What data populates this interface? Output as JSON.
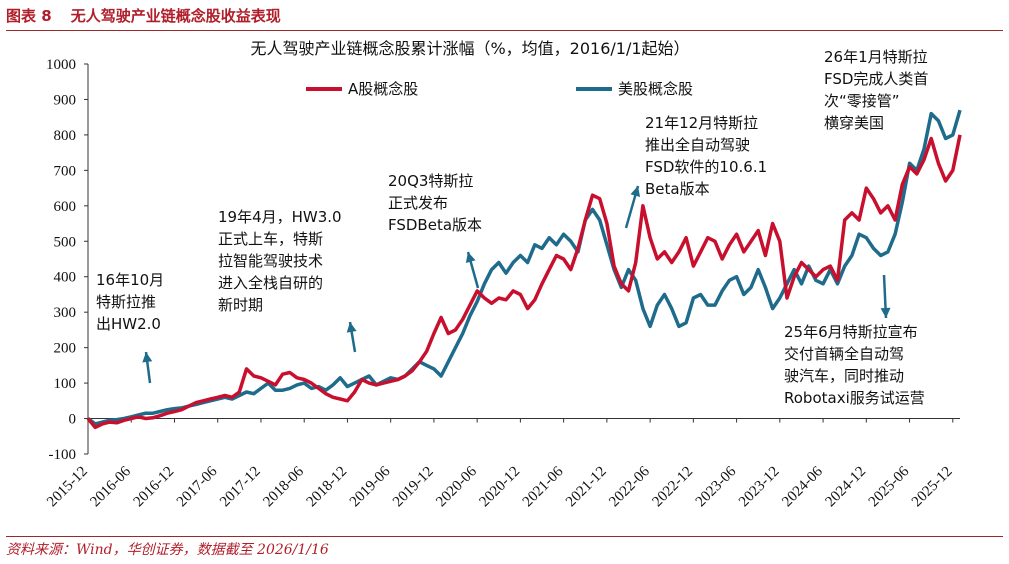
{
  "header": {
    "figure_label": "图表 8",
    "figure_title": "无人驾驶产业链概念股收益表现"
  },
  "footer": {
    "source": "资料来源：Wind，华创证券，数据截至 2026/1/16"
  },
  "colors": {
    "series_a": "#c8102e",
    "series_us": "#1f6b8c",
    "accent": "#b01e2a",
    "arrow": "#1f6b8c"
  },
  "chart_data": {
    "type": "line",
    "title": "无人驾驶产业链概念股累计涨幅（%，均值，2016/1/1起始）",
    "xlabel": "",
    "ylabel": "",
    "ylim": [
      -100,
      1000
    ],
    "yticks": [
      -100,
      0,
      100,
      200,
      300,
      400,
      500,
      600,
      700,
      800,
      900,
      1000
    ],
    "xlim": [
      "2015-12",
      "2026-01"
    ],
    "xticks": [
      "2015-12",
      "2016-06",
      "2016-12",
      "2017-06",
      "2017-12",
      "2018-06",
      "2018-12",
      "2019-06",
      "2019-12",
      "2020-06",
      "2020-12",
      "2021-06",
      "2021-12",
      "2022-06",
      "2022-12",
      "2023-06",
      "2023-12",
      "2024-06",
      "2024-12",
      "2025-06",
      "2025-12"
    ],
    "grid": false,
    "legend_position": "top",
    "series": [
      {
        "name": "A股概念股",
        "points": [
          [
            "2015-12",
            0
          ],
          [
            "2016-01",
            -25
          ],
          [
            "2016-02",
            -15
          ],
          [
            "2016-03",
            -10
          ],
          [
            "2016-04",
            -12
          ],
          [
            "2016-05",
            -5
          ],
          [
            "2016-06",
            0
          ],
          [
            "2016-07",
            5
          ],
          [
            "2016-08",
            0
          ],
          [
            "2016-09",
            2
          ],
          [
            "2016-10",
            8
          ],
          [
            "2016-11",
            15
          ],
          [
            "2016-12",
            20
          ],
          [
            "2017-01",
            25
          ],
          [
            "2017-02",
            35
          ],
          [
            "2017-03",
            45
          ],
          [
            "2017-04",
            50
          ],
          [
            "2017-05",
            55
          ],
          [
            "2017-06",
            60
          ],
          [
            "2017-07",
            65
          ],
          [
            "2017-08",
            60
          ],
          [
            "2017-09",
            75
          ],
          [
            "2017-10",
            140
          ],
          [
            "2017-11",
            120
          ],
          [
            "2017-12",
            115
          ],
          [
            "2018-01",
            105
          ],
          [
            "2018-02",
            95
          ],
          [
            "2018-03",
            125
          ],
          [
            "2018-04",
            130
          ],
          [
            "2018-05",
            115
          ],
          [
            "2018-06",
            110
          ],
          [
            "2018-07",
            100
          ],
          [
            "2018-08",
            85
          ],
          [
            "2018-09",
            70
          ],
          [
            "2018-10",
            60
          ],
          [
            "2018-11",
            55
          ],
          [
            "2018-12",
            50
          ],
          [
            "2019-01",
            75
          ],
          [
            "2019-02",
            110
          ],
          [
            "2019-03",
            100
          ],
          [
            "2019-04",
            95
          ],
          [
            "2019-05",
            100
          ],
          [
            "2019-06",
            105
          ],
          [
            "2019-07",
            110
          ],
          [
            "2019-08",
            120
          ],
          [
            "2019-09",
            135
          ],
          [
            "2019-10",
            160
          ],
          [
            "2019-11",
            190
          ],
          [
            "2019-12",
            240
          ],
          [
            "2020-01",
            285
          ],
          [
            "2020-02",
            240
          ],
          [
            "2020-03",
            250
          ],
          [
            "2020-04",
            280
          ],
          [
            "2020-05",
            320
          ],
          [
            "2020-06",
            360
          ],
          [
            "2020-07",
            340
          ],
          [
            "2020-08",
            325
          ],
          [
            "2020-09",
            340
          ],
          [
            "2020-10",
            335
          ],
          [
            "2020-11",
            360
          ],
          [
            "2020-12",
            350
          ],
          [
            "2021-01",
            310
          ],
          [
            "2021-02",
            335
          ],
          [
            "2021-03",
            380
          ],
          [
            "2021-04",
            420
          ],
          [
            "2021-05",
            460
          ],
          [
            "2021-06",
            450
          ],
          [
            "2021-07",
            420
          ],
          [
            "2021-08",
            480
          ],
          [
            "2021-09",
            560
          ],
          [
            "2021-10",
            630
          ],
          [
            "2021-11",
            620
          ],
          [
            "2021-12",
            550
          ],
          [
            "2022-01",
            430
          ],
          [
            "2022-02",
            380
          ],
          [
            "2022-03",
            360
          ],
          [
            "2022-04",
            440
          ],
          [
            "2022-05",
            600
          ],
          [
            "2022-06",
            510
          ],
          [
            "2022-07",
            450
          ],
          [
            "2022-08",
            470
          ],
          [
            "2022-09",
            440
          ],
          [
            "2022-10",
            470
          ],
          [
            "2022-11",
            510
          ],
          [
            "2022-12",
            430
          ],
          [
            "2023-01",
            470
          ],
          [
            "2023-02",
            510
          ],
          [
            "2023-03",
            500
          ],
          [
            "2023-04",
            450
          ],
          [
            "2023-05",
            490
          ],
          [
            "2023-06",
            520
          ],
          [
            "2023-07",
            470
          ],
          [
            "2023-08",
            500
          ],
          [
            "2023-09",
            530
          ],
          [
            "2023-10",
            460
          ],
          [
            "2023-11",
            550
          ],
          [
            "2023-12",
            500
          ],
          [
            "2024-01",
            340
          ],
          [
            "2024-02",
            400
          ],
          [
            "2024-03",
            440
          ],
          [
            "2024-04",
            420
          ],
          [
            "2024-05",
            400
          ],
          [
            "2024-06",
            420
          ],
          [
            "2024-07",
            430
          ],
          [
            "2024-08",
            390
          ],
          [
            "2024-09",
            560
          ],
          [
            "2024-10",
            580
          ],
          [
            "2024-11",
            560
          ],
          [
            "2024-12",
            650
          ],
          [
            "2025-01",
            620
          ],
          [
            "2025-02",
            580
          ],
          [
            "2025-03",
            600
          ],
          [
            "2025-04",
            560
          ],
          [
            "2025-05",
            660
          ],
          [
            "2025-06",
            710
          ],
          [
            "2025-07",
            690
          ],
          [
            "2025-08",
            730
          ],
          [
            "2025-09",
            790
          ],
          [
            "2025-10",
            720
          ],
          [
            "2025-11",
            670
          ],
          [
            "2025-12",
            700
          ],
          [
            "2026-01",
            800
          ]
        ]
      },
      {
        "name": "美股概念股",
        "points": [
          [
            "2015-12",
            0
          ],
          [
            "2016-01",
            -15
          ],
          [
            "2016-02",
            -10
          ],
          [
            "2016-03",
            -5
          ],
          [
            "2016-04",
            -3
          ],
          [
            "2016-05",
            0
          ],
          [
            "2016-06",
            5
          ],
          [
            "2016-07",
            10
          ],
          [
            "2016-08",
            15
          ],
          [
            "2016-09",
            15
          ],
          [
            "2016-10",
            20
          ],
          [
            "2016-11",
            25
          ],
          [
            "2016-12",
            28
          ],
          [
            "2017-01",
            30
          ],
          [
            "2017-02",
            35
          ],
          [
            "2017-03",
            40
          ],
          [
            "2017-04",
            45
          ],
          [
            "2017-05",
            50
          ],
          [
            "2017-06",
            55
          ],
          [
            "2017-07",
            60
          ],
          [
            "2017-08",
            55
          ],
          [
            "2017-09",
            65
          ],
          [
            "2017-10",
            75
          ],
          [
            "2017-11",
            70
          ],
          [
            "2017-12",
            85
          ],
          [
            "2018-01",
            100
          ],
          [
            "2018-02",
            80
          ],
          [
            "2018-03",
            80
          ],
          [
            "2018-04",
            85
          ],
          [
            "2018-05",
            95
          ],
          [
            "2018-06",
            100
          ],
          [
            "2018-07",
            85
          ],
          [
            "2018-08",
            90
          ],
          [
            "2018-09",
            80
          ],
          [
            "2018-10",
            95
          ],
          [
            "2018-11",
            115
          ],
          [
            "2018-12",
            90
          ],
          [
            "2019-01",
            100
          ],
          [
            "2019-02",
            110
          ],
          [
            "2019-03",
            120
          ],
          [
            "2019-04",
            95
          ],
          [
            "2019-05",
            105
          ],
          [
            "2019-06",
            115
          ],
          [
            "2019-07",
            110
          ],
          [
            "2019-08",
            120
          ],
          [
            "2019-09",
            140
          ],
          [
            "2019-10",
            160
          ],
          [
            "2019-11",
            150
          ],
          [
            "2019-12",
            140
          ],
          [
            "2020-01",
            120
          ],
          [
            "2020-02",
            160
          ],
          [
            "2020-03",
            200
          ],
          [
            "2020-04",
            240
          ],
          [
            "2020-05",
            290
          ],
          [
            "2020-06",
            330
          ],
          [
            "2020-07",
            380
          ],
          [
            "2020-08",
            420
          ],
          [
            "2020-09",
            440
          ],
          [
            "2020-10",
            410
          ],
          [
            "2020-11",
            440
          ],
          [
            "2020-12",
            460
          ],
          [
            "2021-01",
            440
          ],
          [
            "2021-02",
            490
          ],
          [
            "2021-03",
            480
          ],
          [
            "2021-04",
            510
          ],
          [
            "2021-05",
            490
          ],
          [
            "2021-06",
            520
          ],
          [
            "2021-07",
            500
          ],
          [
            "2021-08",
            470
          ],
          [
            "2021-09",
            560
          ],
          [
            "2021-10",
            590
          ],
          [
            "2021-11",
            560
          ],
          [
            "2021-12",
            490
          ],
          [
            "2022-01",
            420
          ],
          [
            "2022-02",
            370
          ],
          [
            "2022-03",
            420
          ],
          [
            "2022-04",
            390
          ],
          [
            "2022-05",
            310
          ],
          [
            "2022-06",
            260
          ],
          [
            "2022-07",
            320
          ],
          [
            "2022-08",
            350
          ],
          [
            "2022-09",
            310
          ],
          [
            "2022-10",
            260
          ],
          [
            "2022-11",
            270
          ],
          [
            "2022-12",
            340
          ],
          [
            "2023-01",
            350
          ],
          [
            "2023-02",
            320
          ],
          [
            "2023-03",
            320
          ],
          [
            "2023-04",
            360
          ],
          [
            "2023-05",
            390
          ],
          [
            "2023-06",
            400
          ],
          [
            "2023-07",
            350
          ],
          [
            "2023-08",
            370
          ],
          [
            "2023-09",
            420
          ],
          [
            "2023-10",
            370
          ],
          [
            "2023-11",
            310
          ],
          [
            "2023-12",
            340
          ],
          [
            "2024-01",
            380
          ],
          [
            "2024-02",
            420
          ],
          [
            "2024-03",
            380
          ],
          [
            "2024-04",
            430
          ],
          [
            "2024-05",
            390
          ],
          [
            "2024-06",
            380
          ],
          [
            "2024-07",
            420
          ],
          [
            "2024-08",
            380
          ],
          [
            "2024-09",
            430
          ],
          [
            "2024-10",
            460
          ],
          [
            "2024-11",
            520
          ],
          [
            "2024-12",
            510
          ],
          [
            "2025-01",
            480
          ],
          [
            "2025-02",
            460
          ],
          [
            "2025-03",
            470
          ],
          [
            "2025-04",
            520
          ],
          [
            "2025-05",
            610
          ],
          [
            "2025-06",
            720
          ],
          [
            "2025-07",
            700
          ],
          [
            "2025-08",
            760
          ],
          [
            "2025-09",
            860
          ],
          [
            "2025-10",
            840
          ],
          [
            "2025-11",
            790
          ],
          [
            "2025-12",
            800
          ],
          [
            "2026-01",
            870
          ]
        ]
      }
    ],
    "annotations": [
      {
        "lines": [
          "16年10月",
          "特斯拉推",
          "出HW2.0"
        ],
        "date": "2016-10"
      },
      {
        "lines": [
          "19年4月，HW3.0",
          "正式上车，特斯",
          "拉智能驾驶技术",
          "进入全栈自研的",
          "新时期"
        ],
        "date": "2019-04"
      },
      {
        "lines": [
          "20Q3特斯拉",
          "正式发布",
          "FSDBeta版本"
        ],
        "date": "2020-09"
      },
      {
        "lines": [
          "21年12月特斯拉",
          "推出全自动驾驶",
          "FSD软件的10.6.1",
          "Beta版本"
        ],
        "date": "2021-12"
      },
      {
        "lines": [
          "26年1月特斯拉",
          "FSD完成人类首",
          "次“零接管”",
          "横穿美国"
        ],
        "date": "2026-01"
      },
      {
        "lines": [
          "25年6月特斯拉宣布",
          "交付首辆全自动驾",
          "驶汽车，同时推动",
          "Robotaxi服务试运营"
        ],
        "date": "2025-06"
      }
    ]
  }
}
